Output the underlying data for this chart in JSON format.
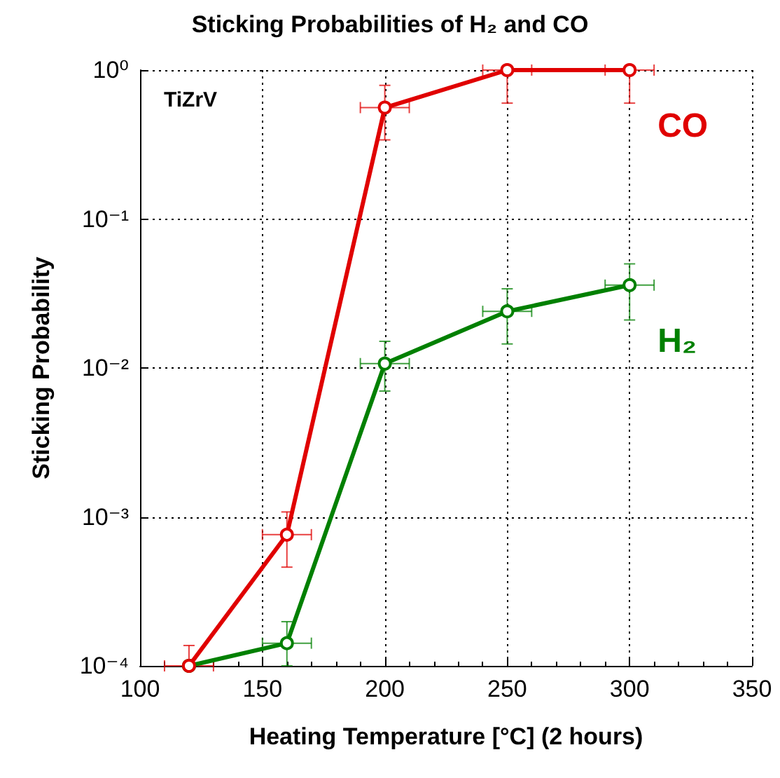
{
  "chart_data": {
    "type": "line",
    "title": "Sticking Probabilities of H₂ and CO",
    "xlabel": "Heating Temperature [°C] (2 hours)",
    "ylabel": "Sticking Probability",
    "annotations": [
      "TiZrV"
    ],
    "x": [
      120,
      160,
      200,
      250,
      300
    ],
    "series": [
      {
        "name": "CO",
        "color": "#e00000",
        "values": [
          0.0001,
          0.00076,
          0.56,
          1,
          1
        ],
        "errors": [
          [
            0.0001,
            0.000137
          ],
          [
            0.00046,
            0.00108
          ],
          [
            0.34,
            0.79
          ],
          [
            0.6,
            1
          ],
          [
            0.6,
            1
          ]
        ],
        "xerrors": [
          10,
          10,
          10,
          10,
          10
        ]
      },
      {
        "name": "H₂",
        "color": "#008000",
        "values": [
          0.0001,
          0.000142,
          0.0107,
          0.024,
          0.036
        ],
        "errors": [
          null,
          [
            0.0001,
            0.000198
          ],
          [
            0.007,
            0.0151
          ],
          [
            0.0145,
            0.034
          ],
          [
            0.021,
            0.05
          ]
        ],
        "xerrors": [
          null,
          10,
          10,
          10,
          10
        ]
      }
    ],
    "xlim": [
      100,
      350
    ],
    "xticks": [
      100,
      150,
      200,
      250,
      300,
      350
    ],
    "ylim": [
      0.0001,
      1
    ],
    "yticks": [
      {
        "value": 0.0001,
        "label": "10⁻⁴"
      },
      {
        "value": 0.001,
        "label": "10⁻³"
      },
      {
        "value": 0.01,
        "label": "10⁻²"
      },
      {
        "value": 0.1,
        "label": "10⁻¹"
      },
      {
        "value": 1,
        "label": "10⁰"
      }
    ],
    "log": true,
    "grid": true,
    "legend": false,
    "marker": "circle",
    "line_style": "solid"
  }
}
